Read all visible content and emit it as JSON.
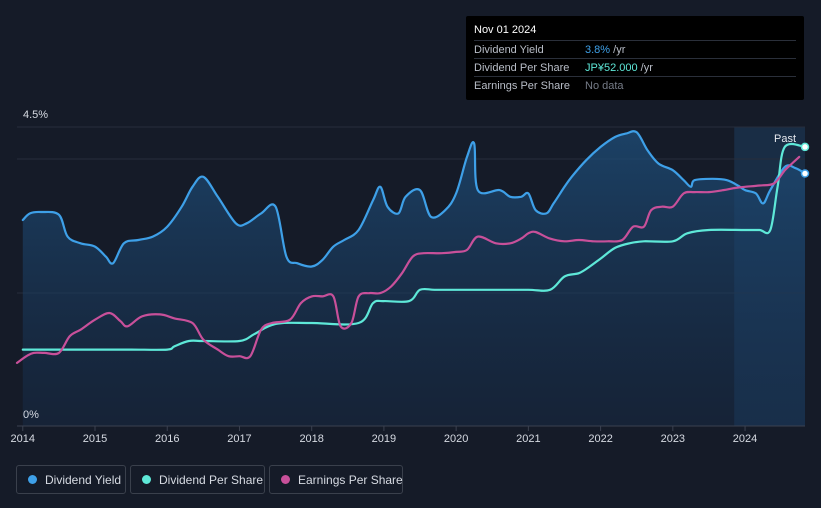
{
  "tooltip": {
    "date": "Nov 01 2024",
    "rows": [
      {
        "label": "Dividend Yield",
        "value": "3.8%",
        "unit": " /yr"
      },
      {
        "label": "Dividend Per Share",
        "value": "JP¥52.000",
        "unit": " /yr"
      },
      {
        "label": "Earnings Per Share",
        "value": "No data"
      }
    ]
  },
  "legend": [
    {
      "label": "Dividend Yield",
      "color": "#3ea0e8"
    },
    {
      "label": "Dividend Per Share",
      "color": "#5ee8d8"
    },
    {
      "label": "Earnings Per Share",
      "color": "#c8509a"
    }
  ],
  "chart_data": {
    "type": "line",
    "title": "",
    "xlabel": "",
    "ylabel": "",
    "y_tick_labels": [
      "4.5%",
      "0%"
    ],
    "ylim": [
      0,
      4.5
    ],
    "xlim": [
      2013.92,
      2024.83
    ],
    "x_tick_labels": [
      "2014",
      "2015",
      "2016",
      "2017",
      "2018",
      "2019",
      "2020",
      "2021",
      "2022",
      "2023",
      "2024"
    ],
    "past_label": "Past",
    "forecast_start": 2023.85,
    "series": [
      {
        "name": "Dividend Yield",
        "color": "#3ea0e8",
        "points": [
          [
            2014.0,
            3.1
          ],
          [
            2014.1,
            3.2
          ],
          [
            2014.25,
            3.22
          ],
          [
            2014.5,
            3.18
          ],
          [
            2014.62,
            2.85
          ],
          [
            2014.8,
            2.75
          ],
          [
            2015.0,
            2.7
          ],
          [
            2015.15,
            2.55
          ],
          [
            2015.25,
            2.45
          ],
          [
            2015.4,
            2.75
          ],
          [
            2015.6,
            2.8
          ],
          [
            2015.8,
            2.85
          ],
          [
            2016.0,
            3.0
          ],
          [
            2016.2,
            3.3
          ],
          [
            2016.35,
            3.6
          ],
          [
            2016.5,
            3.75
          ],
          [
            2016.7,
            3.45
          ],
          [
            2016.95,
            3.05
          ],
          [
            2017.1,
            3.05
          ],
          [
            2017.3,
            3.2
          ],
          [
            2017.5,
            3.3
          ],
          [
            2017.65,
            2.55
          ],
          [
            2017.8,
            2.45
          ],
          [
            2018.0,
            2.4
          ],
          [
            2018.15,
            2.5
          ],
          [
            2018.3,
            2.7
          ],
          [
            2018.45,
            2.8
          ],
          [
            2018.65,
            2.95
          ],
          [
            2018.85,
            3.4
          ],
          [
            2018.95,
            3.6
          ],
          [
            2019.05,
            3.3
          ],
          [
            2019.2,
            3.2
          ],
          [
            2019.3,
            3.45
          ],
          [
            2019.5,
            3.55
          ],
          [
            2019.65,
            3.15
          ],
          [
            2019.85,
            3.25
          ],
          [
            2020.0,
            3.5
          ],
          [
            2020.15,
            4.05
          ],
          [
            2020.25,
            4.25
          ],
          [
            2020.3,
            3.55
          ],
          [
            2020.6,
            3.55
          ],
          [
            2020.75,
            3.45
          ],
          [
            2020.9,
            3.45
          ],
          [
            2021.0,
            3.5
          ],
          [
            2021.1,
            3.25
          ],
          [
            2021.25,
            3.2
          ],
          [
            2021.35,
            3.35
          ],
          [
            2021.5,
            3.6
          ],
          [
            2021.6,
            3.75
          ],
          [
            2021.8,
            4.0
          ],
          [
            2022.0,
            4.2
          ],
          [
            2022.2,
            4.35
          ],
          [
            2022.35,
            4.4
          ],
          [
            2022.5,
            4.42
          ],
          [
            2022.65,
            4.15
          ],
          [
            2022.8,
            3.95
          ],
          [
            2023.0,
            3.85
          ],
          [
            2023.15,
            3.7
          ],
          [
            2023.25,
            3.6
          ],
          [
            2023.3,
            3.7
          ],
          [
            2023.55,
            3.72
          ],
          [
            2023.75,
            3.7
          ],
          [
            2023.9,
            3.62
          ],
          [
            2024.0,
            3.55
          ],
          [
            2024.15,
            3.5
          ],
          [
            2024.25,
            3.35
          ],
          [
            2024.35,
            3.55
          ],
          [
            2024.55,
            3.9
          ],
          [
            2024.7,
            3.88
          ],
          [
            2024.83,
            3.8
          ]
        ]
      },
      {
        "name": "Dividend Per Share",
        "color": "#5ee8d8",
        "points": [
          [
            2014.0,
            1.15
          ],
          [
            2014.5,
            1.15
          ],
          [
            2015.0,
            1.15
          ],
          [
            2015.5,
            1.15
          ],
          [
            2016.0,
            1.15
          ],
          [
            2016.1,
            1.2
          ],
          [
            2016.3,
            1.28
          ],
          [
            2016.5,
            1.28
          ],
          [
            2017.0,
            1.28
          ],
          [
            2017.2,
            1.38
          ],
          [
            2017.4,
            1.5
          ],
          [
            2017.6,
            1.55
          ],
          [
            2018.0,
            1.55
          ],
          [
            2018.65,
            1.55
          ],
          [
            2018.85,
            1.85
          ],
          [
            2019.0,
            1.88
          ],
          [
            2019.35,
            1.88
          ],
          [
            2019.5,
            2.05
          ],
          [
            2019.7,
            2.05
          ],
          [
            2020.0,
            2.05
          ],
          [
            2020.5,
            2.05
          ],
          [
            2021.0,
            2.05
          ],
          [
            2021.3,
            2.05
          ],
          [
            2021.5,
            2.25
          ],
          [
            2021.7,
            2.3
          ],
          [
            2021.85,
            2.4
          ],
          [
            2022.0,
            2.52
          ],
          [
            2022.2,
            2.68
          ],
          [
            2022.4,
            2.75
          ],
          [
            2022.6,
            2.78
          ],
          [
            2023.0,
            2.78
          ],
          [
            2023.2,
            2.9
          ],
          [
            2023.5,
            2.95
          ],
          [
            2024.0,
            2.95
          ],
          [
            2024.2,
            2.95
          ],
          [
            2024.35,
            2.95
          ],
          [
            2024.45,
            3.6
          ],
          [
            2024.55,
            4.2
          ],
          [
            2024.83,
            4.2
          ]
        ]
      },
      {
        "name": "Earnings Per Share",
        "color": "#c8509a",
        "points": [
          [
            2013.92,
            0.95
          ],
          [
            2014.05,
            1.05
          ],
          [
            2014.15,
            1.1
          ],
          [
            2014.3,
            1.1
          ],
          [
            2014.5,
            1.1
          ],
          [
            2014.65,
            1.35
          ],
          [
            2014.8,
            1.45
          ],
          [
            2015.0,
            1.6
          ],
          [
            2015.2,
            1.7
          ],
          [
            2015.35,
            1.58
          ],
          [
            2015.45,
            1.5
          ],
          [
            2015.65,
            1.65
          ],
          [
            2015.9,
            1.68
          ],
          [
            2016.1,
            1.62
          ],
          [
            2016.35,
            1.55
          ],
          [
            2016.5,
            1.3
          ],
          [
            2016.7,
            1.15
          ],
          [
            2016.85,
            1.05
          ],
          [
            2017.0,
            1.05
          ],
          [
            2017.15,
            1.05
          ],
          [
            2017.3,
            1.45
          ],
          [
            2017.45,
            1.55
          ],
          [
            2017.7,
            1.6
          ],
          [
            2017.85,
            1.85
          ],
          [
            2018.0,
            1.95
          ],
          [
            2018.15,
            1.95
          ],
          [
            2018.3,
            1.95
          ],
          [
            2018.4,
            1.5
          ],
          [
            2018.55,
            1.55
          ],
          [
            2018.65,
            1.95
          ],
          [
            2018.8,
            2.0
          ],
          [
            2018.95,
            2.0
          ],
          [
            2019.1,
            2.1
          ],
          [
            2019.25,
            2.3
          ],
          [
            2019.4,
            2.55
          ],
          [
            2019.55,
            2.6
          ],
          [
            2019.8,
            2.6
          ],
          [
            2020.0,
            2.62
          ],
          [
            2020.15,
            2.65
          ],
          [
            2020.3,
            2.85
          ],
          [
            2020.55,
            2.75
          ],
          [
            2020.75,
            2.75
          ],
          [
            2020.9,
            2.82
          ],
          [
            2021.0,
            2.9
          ],
          [
            2021.1,
            2.92
          ],
          [
            2021.3,
            2.82
          ],
          [
            2021.5,
            2.78
          ],
          [
            2021.7,
            2.8
          ],
          [
            2021.9,
            2.78
          ],
          [
            2022.1,
            2.78
          ],
          [
            2022.3,
            2.8
          ],
          [
            2022.45,
            3.0
          ],
          [
            2022.6,
            3.0
          ],
          [
            2022.7,
            3.25
          ],
          [
            2022.85,
            3.3
          ],
          [
            2023.0,
            3.3
          ],
          [
            2023.15,
            3.5
          ],
          [
            2023.3,
            3.52
          ],
          [
            2023.5,
            3.52
          ],
          [
            2023.7,
            3.55
          ],
          [
            2023.85,
            3.58
          ],
          [
            2024.0,
            3.6
          ],
          [
            2024.2,
            3.62
          ],
          [
            2024.4,
            3.65
          ],
          [
            2024.55,
            3.85
          ],
          [
            2024.65,
            3.95
          ],
          [
            2024.75,
            4.05
          ]
        ]
      }
    ]
  }
}
